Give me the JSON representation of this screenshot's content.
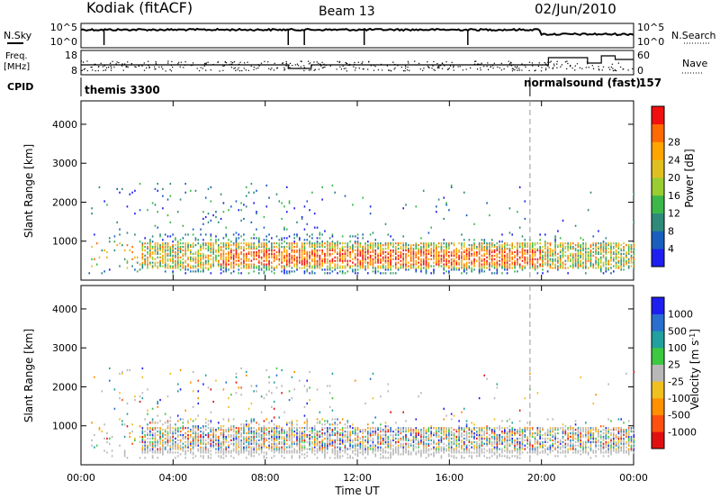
{
  "header": {
    "title": "Kodiak (fitACF)",
    "beam": "Beam 13",
    "date": "02/Jun/2010"
  },
  "status_panels": {
    "nsky_label": "N.Sky",
    "nsky_ticks": [
      "10^5",
      "10^0"
    ],
    "nsearch_label": "N.Search",
    "nsearch_ticks": [
      "10^5",
      "10^0"
    ],
    "freq_label_line1": "Freq.",
    "freq_label_line2": "[MHz]",
    "freq_ticks": [
      "18",
      "8"
    ],
    "nave_label": "Nave",
    "nave_ticks": [
      "60",
      "0"
    ],
    "cpid_label": "CPID",
    "cpid_left": "themis 3300",
    "cpid_right": "normalsound (fast)",
    "cpid_number": "157",
    "cpid_switch_hour": 19.5
  },
  "chart_data": [
    {
      "type": "heatmap",
      "name": "power",
      "xlabel": "",
      "ylabel": "Slant Range [km]",
      "xlim": [
        0,
        24
      ],
      "ylim": [
        0,
        4600
      ],
      "yticks": [
        "1000",
        "2000",
        "3000",
        "4000"
      ],
      "colorbar": {
        "label": "Power [dB]",
        "ticks": [
          "4",
          "8",
          "12",
          "16",
          "20",
          "24",
          "28"
        ],
        "colors": [
          "#1e1ef0",
          "#1a5fbf",
          "#2e8b7a",
          "#3cb84a",
          "#9acd32",
          "#e0c020",
          "#ffa500",
          "#ff6a00",
          "#f01010"
        ]
      },
      "note": "scatter of range-time echoes, strongest band 300-900 km"
    },
    {
      "type": "heatmap",
      "name": "velocity",
      "xlabel": "Time UT",
      "ylabel": "Slant Range [km]",
      "xlim": [
        0,
        24
      ],
      "ylim": [
        0,
        4600
      ],
      "xticks": [
        "00:00",
        "04:00",
        "08:00",
        "12:00",
        "16:00",
        "20:00",
        "00:00"
      ],
      "yticks": [
        "1000",
        "2000",
        "3000",
        "4000"
      ],
      "colorbar": {
        "label": "Velocity [m s^-1]",
        "ticks": [
          "1000",
          "500",
          "100",
          "25",
          "-25",
          "-100",
          "-500",
          "-1000"
        ],
        "colors": [
          "#1e1ef0",
          "#2a6fd0",
          "#20a0a0",
          "#3cc840",
          "#b8b8b8",
          "#f0c020",
          "#ff9000",
          "#ff5010",
          "#e01010"
        ]
      }
    }
  ]
}
